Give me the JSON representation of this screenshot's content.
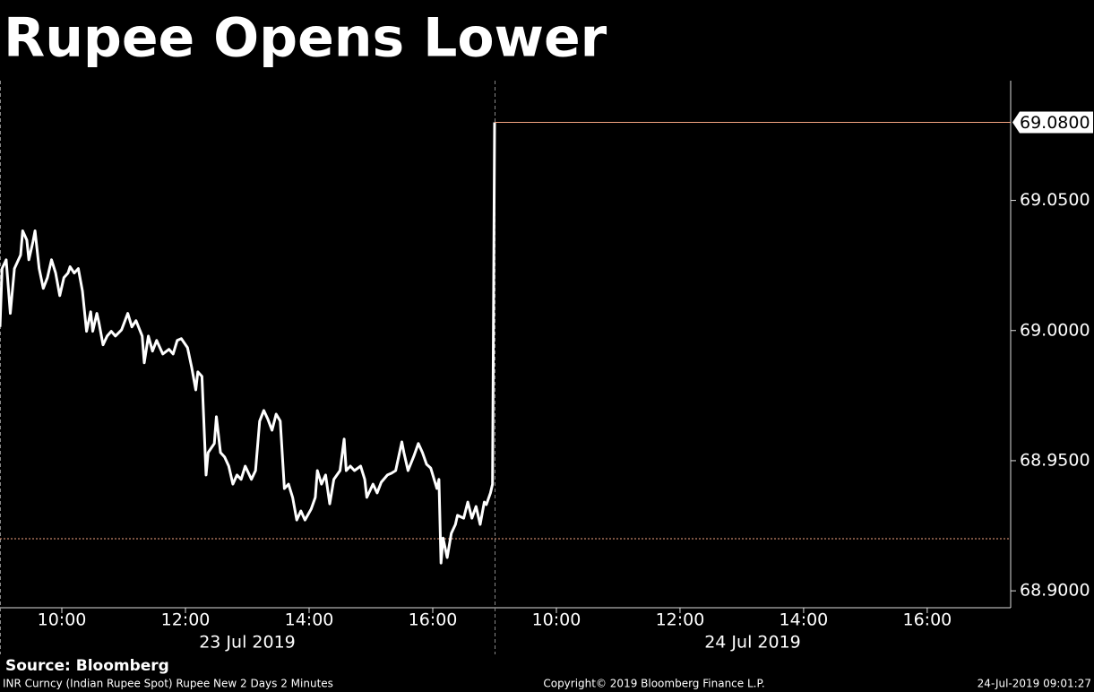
{
  "chart_data": {
    "type": "line",
    "title": "Rupee Opens Lower",
    "source": "Source: Bloomberg",
    "footer": {
      "left": "INR Curncy (Indian Rupee Spot) Rupee New 2 Days 2 Minutes",
      "center": "Copyright© 2019 Bloomberg Finance L.P.",
      "right": "24-Jul-2019 09:01:27"
    },
    "days": [
      {
        "label": "23 Jul 2019",
        "xlim": [
          "09:00",
          "17:00"
        ],
        "xticks": [
          "10:00",
          "12:00",
          "14:00",
          "16:00"
        ]
      },
      {
        "label": "24 Jul 2019",
        "xlim": [
          "09:00",
          "17:21"
        ],
        "xticks": [
          "10:00",
          "12:00",
          "14:00",
          "16:00"
        ]
      }
    ],
    "ylim": [
      68.8935,
      69.096
    ],
    "yticks": [
      {
        "value": 68.9,
        "label": "68.9000"
      },
      {
        "value": 68.95,
        "label": "68.9500"
      },
      {
        "value": 69.0,
        "label": "69.0000"
      },
      {
        "value": 69.05,
        "label": "69.0500"
      }
    ],
    "last_value": {
      "value": 69.08,
      "label": "69.0800"
    },
    "reference_line": 68.92,
    "colors": {
      "line": "#ffffff",
      "last": "#f4a582",
      "reference": "#f4a582"
    },
    "series": [
      {
        "color": "#ffffff",
        "x": [
          "23 Jul 2019 09:00",
          "23 Jul 2019 09:02",
          "23 Jul 2019 09:06",
          "23 Jul 2019 09:10",
          "23 Jul 2019 09:14",
          "23 Jul 2019 09:20",
          "23 Jul 2019 09:22",
          "23 Jul 2019 09:26",
          "23 Jul 2019 09:28",
          "23 Jul 2019 09:32",
          "23 Jul 2019 09:34",
          "23 Jul 2019 09:38",
          "23 Jul 2019 09:42",
          "23 Jul 2019 09:46",
          "23 Jul 2019 09:50",
          "23 Jul 2019 09:54",
          "23 Jul 2019 09:58",
          "23 Jul 2019 10:02",
          "23 Jul 2019 10:06",
          "23 Jul 2019 10:08",
          "23 Jul 2019 10:12",
          "23 Jul 2019 10:16",
          "23 Jul 2019 10:20",
          "23 Jul 2019 10:24",
          "23 Jul 2019 10:28",
          "23 Jul 2019 10:30",
          "23 Jul 2019 10:34",
          "23 Jul 2019 10:36",
          "23 Jul 2019 10:40",
          "23 Jul 2019 10:44",
          "23 Jul 2019 10:48",
          "23 Jul 2019 10:52",
          "23 Jul 2019 10:58",
          "23 Jul 2019 11:04",
          "23 Jul 2019 11:08",
          "23 Jul 2019 11:12",
          "23 Jul 2019 11:18",
          "23 Jul 2019 11:20",
          "23 Jul 2019 11:24",
          "23 Jul 2019 11:28",
          "23 Jul 2019 11:32",
          "23 Jul 2019 11:38",
          "23 Jul 2019 11:44",
          "23 Jul 2019 11:48",
          "23 Jul 2019 11:52",
          "23 Jul 2019 11:56",
          "23 Jul 2019 12:02",
          "23 Jul 2019 12:06",
          "23 Jul 2019 12:10",
          "23 Jul 2019 12:12",
          "23 Jul 2019 12:16",
          "23 Jul 2019 12:20",
          "23 Jul 2019 12:22",
          "23 Jul 2019 12:28",
          "23 Jul 2019 12:30",
          "23 Jul 2019 12:34",
          "23 Jul 2019 12:38",
          "23 Jul 2019 12:42",
          "23 Jul 2019 12:46",
          "23 Jul 2019 12:50",
          "23 Jul 2019 12:54",
          "23 Jul 2019 12:58",
          "23 Jul 2019 13:04",
          "23 Jul 2019 13:08",
          "23 Jul 2019 13:12",
          "23 Jul 2019 13:16",
          "23 Jul 2019 13:20",
          "23 Jul 2019 13:24",
          "23 Jul 2019 13:28",
          "23 Jul 2019 13:32",
          "23 Jul 2019 13:36",
          "23 Jul 2019 13:40",
          "23 Jul 2019 13:44",
          "23 Jul 2019 13:48",
          "23 Jul 2019 13:52",
          "23 Jul 2019 13:56",
          "23 Jul 2019 14:02",
          "23 Jul 2019 14:06",
          "23 Jul 2019 14:08",
          "23 Jul 2019 14:12",
          "23 Jul 2019 14:16",
          "23 Jul 2019 14:20",
          "23 Jul 2019 14:24",
          "23 Jul 2019 14:30",
          "23 Jul 2019 14:34",
          "23 Jul 2019 14:36",
          "23 Jul 2019 14:40",
          "23 Jul 2019 14:44",
          "23 Jul 2019 14:50",
          "23 Jul 2019 14:54",
          "23 Jul 2019 14:56",
          "23 Jul 2019 15:02",
          "23 Jul 2019 15:06",
          "23 Jul 2019 15:10",
          "23 Jul 2019 15:16",
          "23 Jul 2019 15:20",
          "23 Jul 2019 15:24",
          "23 Jul 2019 15:30",
          "23 Jul 2019 15:32",
          "23 Jul 2019 15:36",
          "23 Jul 2019 15:42",
          "23 Jul 2019 15:46",
          "23 Jul 2019 15:50",
          "23 Jul 2019 15:54",
          "23 Jul 2019 15:58",
          "23 Jul 2019 16:04",
          "23 Jul 2019 16:06",
          "23 Jul 2019 16:08",
          "23 Jul 2019 16:10",
          "23 Jul 2019 16:14",
          "23 Jul 2019 16:18",
          "23 Jul 2019 16:22",
          "23 Jul 2019 16:24",
          "23 Jul 2019 16:30",
          "23 Jul 2019 16:34",
          "23 Jul 2019 16:38",
          "23 Jul 2019 16:42",
          "23 Jul 2019 16:46",
          "23 Jul 2019 16:50",
          "23 Jul 2019 16:52",
          "23 Jul 2019 16:56",
          "23 Jul 2019 16:58",
          "24 Jul 2019 09:00"
        ],
        "values": [
          69.0014,
          69.0238,
          69.0272,
          69.0066,
          69.0238,
          69.029,
          69.0383,
          69.0348,
          69.0272,
          69.0341,
          69.0383,
          69.0238,
          69.0162,
          69.0203,
          69.0272,
          69.0221,
          69.0134,
          69.0203,
          69.0221,
          69.0245,
          69.0221,
          69.0238,
          69.0152,
          68.9997,
          69.0072,
          68.9997,
          69.0066,
          69.0031,
          68.9945,
          68.9979,
          68.9997,
          68.9979,
          69.0003,
          69.0066,
          69.0014,
          69.0038,
          68.9979,
          68.9876,
          68.9979,
          68.9921,
          68.9962,
          68.991,
          68.9928,
          68.991,
          68.9962,
          68.9969,
          68.9934,
          68.9859,
          68.9772,
          68.9841,
          68.9824,
          68.9445,
          68.9531,
          68.9566,
          68.9669,
          68.9531,
          68.9514,
          68.9479,
          68.941,
          68.9445,
          68.9428,
          68.9479,
          68.9428,
          68.9462,
          68.9652,
          68.9693,
          68.9659,
          68.9617,
          68.9679,
          68.9652,
          68.9393,
          68.941,
          68.9359,
          68.9272,
          68.9307,
          68.9272,
          68.9314,
          68.9359,
          68.9462,
          68.941,
          68.9445,
          68.9334,
          68.9428,
          68.9462,
          68.9583,
          68.9462,
          68.9479,
          68.9462,
          68.9479,
          68.9428,
          68.9359,
          68.941,
          68.9376,
          68.9417,
          68.9445,
          68.9452,
          68.9462,
          68.9572,
          68.9531,
          68.9462,
          68.9521,
          68.9566,
          68.9531,
          68.9486,
          68.9472,
          68.9393,
          68.9428,
          68.9107,
          68.9203,
          68.9128,
          68.9221,
          68.9255,
          68.929,
          68.9279,
          68.9341,
          68.9279,
          68.9324,
          68.9255,
          68.9341,
          68.9331,
          68.9376,
          68.941,
          69.08
        ]
      }
    ]
  }
}
